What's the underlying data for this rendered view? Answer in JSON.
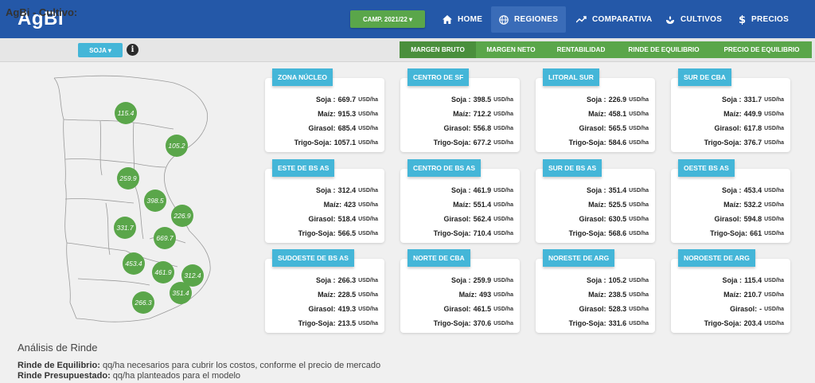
{
  "header": {
    "brand": "AgBI",
    "campaign": "CAMP. 2021/22 ▾",
    "nav": [
      {
        "label": "HOME",
        "icon": "home-icon"
      },
      {
        "label": "REGIONES",
        "icon": "globe-icon"
      },
      {
        "label": "COMPARATIVA",
        "icon": "trend-icon"
      },
      {
        "label": "CULTIVOS",
        "icon": "sprout-icon"
      },
      {
        "label": "PRECIOS",
        "icon": "dollar-icon"
      }
    ]
  },
  "subbar": {
    "title": "AgBi - Cultivo:",
    "crop": "SOJA ▾",
    "info": "i",
    "metrics": [
      "MARGEN BRUTO",
      "MARGEN NETO",
      "RENTABILIDAD",
      "RINDE DE EQUILIBRIO",
      "PRECIO DE EQUILIBRIO"
    ]
  },
  "map": {
    "bubbles": [
      "115.4",
      "105.2",
      "259.9",
      "398.5",
      "226.9",
      "331.7",
      "669.7",
      "453.4",
      "461.9",
      "312.4",
      "351.4",
      "266.3"
    ]
  },
  "unit": "USD/ha",
  "row_labels": [
    "Soja :",
    "Maíz:",
    "Girasol:",
    "Trigo-Soja:"
  ],
  "regions": [
    {
      "name": "ZONA NÚCLEO",
      "values": [
        "669.7",
        "915.3",
        "685.4",
        "1057.1"
      ]
    },
    {
      "name": "CENTRO DE SF",
      "values": [
        "398.5",
        "712.2",
        "556.8",
        "677.2"
      ]
    },
    {
      "name": "LITORAL SUR",
      "values": [
        "226.9",
        "458.1",
        "565.5",
        "584.6"
      ]
    },
    {
      "name": "SUR DE CBA",
      "values": [
        "331.7",
        "449.9",
        "617.8",
        "376.7"
      ]
    },
    {
      "name": "ESTE DE BS AS",
      "values": [
        "312.4",
        "423",
        "518.4",
        "566.5"
      ]
    },
    {
      "name": "CENTRO DE BS AS",
      "values": [
        "461.9",
        "551.4",
        "562.4",
        "710.4"
      ]
    },
    {
      "name": "SUR DE BS AS",
      "values": [
        "351.4",
        "525.5",
        "630.5",
        "568.6"
      ]
    },
    {
      "name": "OESTE BS AS",
      "values": [
        "453.4",
        "532.2",
        "594.8",
        "661"
      ]
    },
    {
      "name": "SUDOESTE DE BS AS",
      "values": [
        "266.3",
        "228.5",
        "419.3",
        "213.5"
      ]
    },
    {
      "name": "NORTE DE CBA",
      "values": [
        "259.9",
        "493",
        "461.5",
        "370.6"
      ]
    },
    {
      "name": "NORESTE DE ARG",
      "values": [
        "105.2",
        "238.5",
        "528.3",
        "331.6"
      ]
    },
    {
      "name": "NOROESTE DE ARG",
      "values": [
        "115.4",
        "210.7",
        "-",
        "203.4"
      ]
    }
  ],
  "footer": {
    "title": "Análisis de Rinde",
    "line1_label": "Rinde de Equilibrio:",
    "line1_text": " qq/ha necesarios para cubrir los costos, conforme el precio de mercado",
    "line2_label": "Rinde Presupuestado:",
    "line2_text": " qq/ha planteados para el modelo"
  }
}
